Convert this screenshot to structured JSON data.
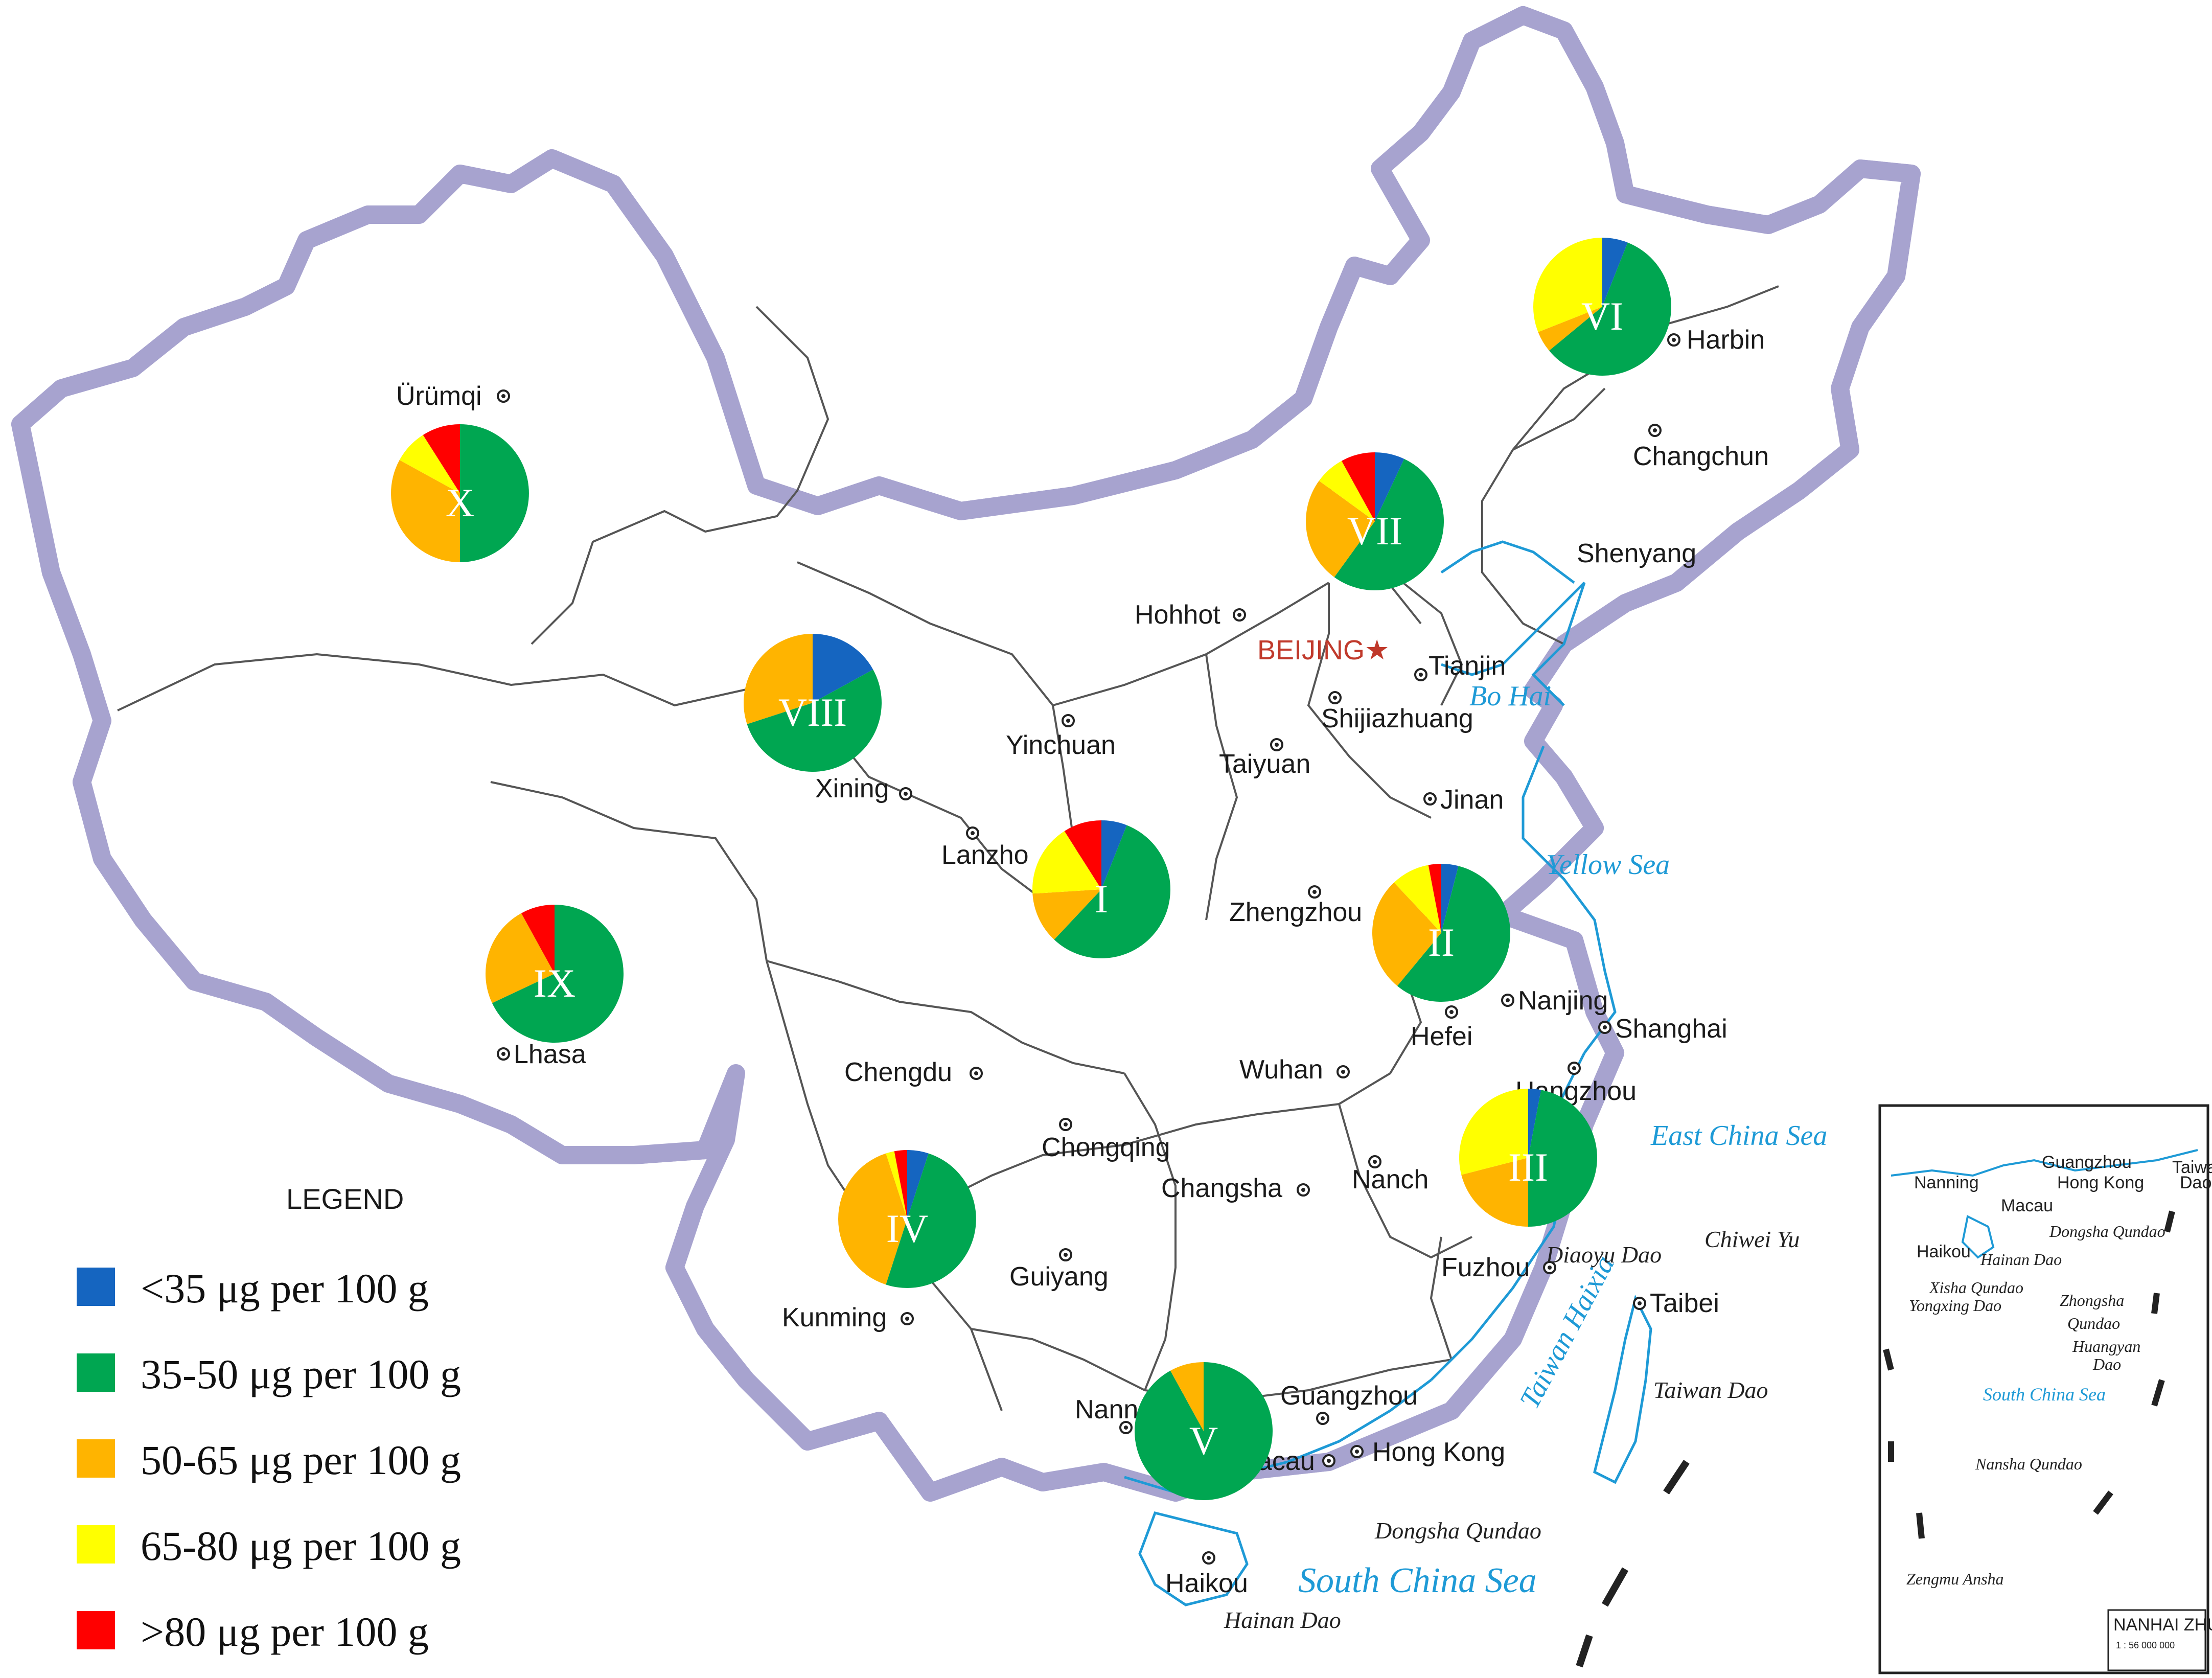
{
  "map": {
    "capital": "BEIJING★",
    "cities": {
      "urumqi": "Ürümqi",
      "harbin": "Harbin",
      "changchun": "Changchun",
      "shenyang": "Shenyang",
      "hohhot": "Hohhot",
      "tianjin": "Tianjin",
      "shijiazhuang": "Shijiazhuang",
      "taiyuan": "Taiyuan",
      "yinchuan": "Yinchuan",
      "xining": "Xining",
      "lanzhou": "Lanzho",
      "jinan": "Jinan",
      "zhengzhou": "Zhengzhou",
      "nanjing": "Nanjing",
      "hefei": "Hefei",
      "shanghai": "Shanghai",
      "hangzhou": "Hangzhou",
      "wuhan": "Wuhan",
      "chengdu": "Chengdu",
      "chongqing": "Chongqing",
      "changsha": "Changsha",
      "nanchang": "Nanch",
      "fuzhou": "Fuzhou",
      "taibei": "Taibei",
      "guiyang": "Guiyang",
      "kunming": "Kunming",
      "nanning": "Nann",
      "guangzhou": "Guangzhou",
      "hongkong": "Hong Kong",
      "macau": "acau",
      "haikou": "Haikou",
      "lhasa": "Lhasa"
    },
    "seas": {
      "bohai": "Bo Hai",
      "yellow": "Yellow Sea",
      "eastchina": "East China Sea",
      "southchina": "South China Sea",
      "taiwanhaixia": "Taiwan Haixia"
    },
    "islands": {
      "diaoyu": "Diaoyu Dao",
      "chiwei": "Chiwei Yu",
      "taiwan": "Taiwan Dao",
      "dongsha": "Dongsha Qundao",
      "hainan": "Hainan Dao"
    }
  },
  "legend": {
    "title": "LEGEND",
    "items": [
      {
        "label": "<35 μg per 100 g",
        "color": "#1565c0"
      },
      {
        "label": "35-50 μg per 100 g",
        "color": "#00a651"
      },
      {
        "label": "50-65 μg per 100 g",
        "color": "#ffb400"
      },
      {
        "label": "65-80 μg per 100 g",
        "color": "#ffff00"
      },
      {
        "label": ">80 μg per 100 g",
        "color": "#ff0000"
      }
    ]
  },
  "chart_data": {
    "type": "pie",
    "categories": [
      "<35 μg per 100 g",
      "35-50 μg per 100 g",
      "50-65 μg per 100 g",
      "65-80 μg per 100 g",
      ">80 μg per 100 g"
    ],
    "colors": [
      "#1565c0",
      "#00a651",
      "#ffb400",
      "#ffff00",
      "#ff0000"
    ],
    "regions": [
      {
        "name": "I",
        "values": [
          6,
          56,
          12,
          17,
          9
        ]
      },
      {
        "name": "II",
        "values": [
          4,
          57,
          27,
          9,
          3
        ]
      },
      {
        "name": "III",
        "values": [
          3,
          47,
          21,
          29,
          0
        ]
      },
      {
        "name": "IV",
        "values": [
          5,
          50,
          40,
          2,
          3
        ]
      },
      {
        "name": "V",
        "values": [
          0,
          92,
          8,
          0,
          0
        ]
      },
      {
        "name": "VI",
        "values": [
          6,
          58,
          5,
          31,
          0
        ]
      },
      {
        "name": "VII",
        "values": [
          7,
          53,
          25,
          7,
          8
        ]
      },
      {
        "name": "VIII",
        "values": [
          17,
          53,
          30,
          0,
          0
        ]
      },
      {
        "name": "IX",
        "values": [
          0,
          68,
          24,
          0,
          8
        ]
      },
      {
        "name": "X",
        "values": [
          0,
          50,
          33,
          8,
          9
        ]
      }
    ]
  },
  "inset": {
    "cities": {
      "guangzhou": "Guangzhou",
      "hongkong": "Hong Kong",
      "taiwan": "Taiwa",
      "dao": "Dao",
      "nanning": "Nanning",
      "macau": "Macau",
      "haikou": "Haikou",
      "hainan": "Hainan Dao"
    },
    "islands": {
      "dongsha": "Dongsha Qundao",
      "xisha": "Xisha Qundao",
      "yongxing": "Yongxing Dao",
      "zhongsha1": "Zhongsha",
      "zhongsha2": "Qundao",
      "huangyan1": "Huangyan",
      "huangyan2": "Dao",
      "nansha": "Nansha Qundao",
      "zengmu": "Zengmu Ansha"
    },
    "sea": "South China Sea",
    "title": "NANHAI ZHUDAO",
    "scale": "1 : 56 000 000"
  }
}
